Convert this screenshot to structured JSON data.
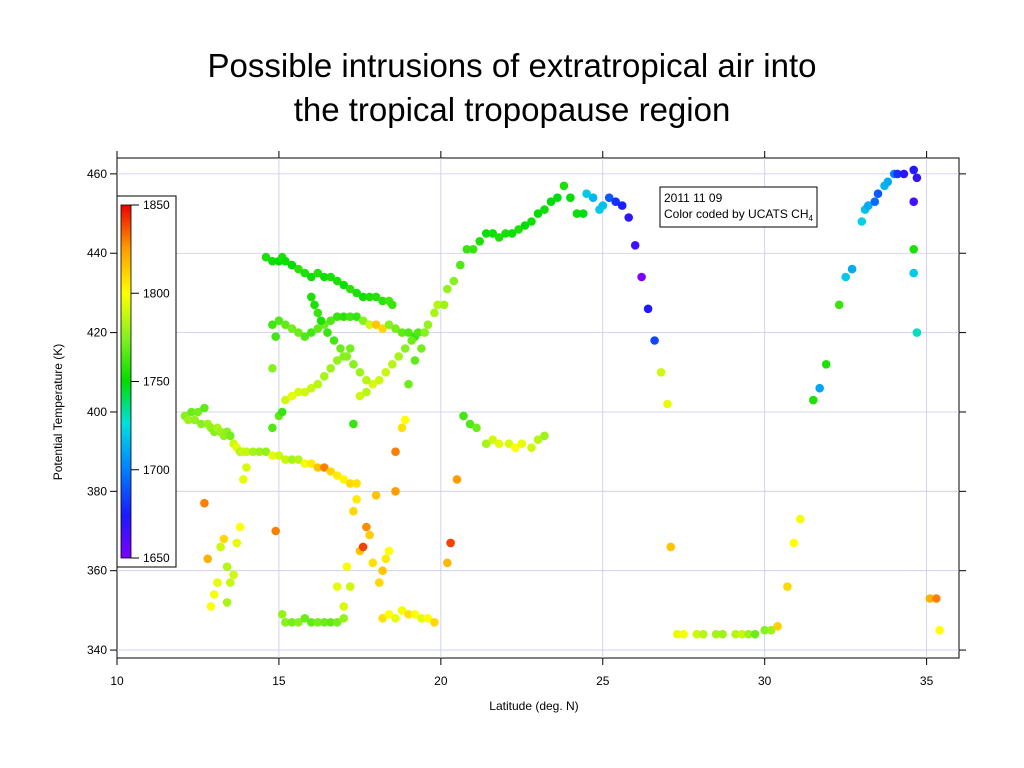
{
  "slide": {
    "title_line1": "Possible intrusions of extratropical air into",
    "title_line2": "the tropical tropopause region"
  },
  "chart_data": {
    "type": "scatter",
    "xlabel": "Latitude (deg. N)",
    "ylabel": "Potential Temperature (K)",
    "xlim": [
      10,
      36
    ],
    "ylim": [
      338,
      464
    ],
    "xticks": [
      10,
      15,
      20,
      25,
      30,
      35
    ],
    "yticks": [
      340,
      360,
      380,
      400,
      420,
      440,
      460
    ],
    "grid": true,
    "annotation": {
      "line1": "2011 11 09",
      "line2_prefix": "Color coded by UCATS CH",
      "line2_sub": "4"
    },
    "colorbar": {
      "min": 1650,
      "max": 1850,
      "ticks": [
        1650,
        1700,
        1750,
        1800,
        1850
      ],
      "placement": "top-left"
    },
    "points": [
      [
        12.1,
        399,
        1775
      ],
      [
        12.2,
        398,
        1780
      ],
      [
        12.3,
        400,
        1770
      ],
      [
        12.4,
        398,
        1778
      ],
      [
        12.5,
        400,
        1772
      ],
      [
        12.6,
        397,
        1775
      ],
      [
        12.7,
        401,
        1768
      ],
      [
        12.8,
        397,
        1780
      ],
      [
        12.9,
        396,
        1778
      ],
      [
        13.0,
        395,
        1775
      ],
      [
        13.1,
        396,
        1782
      ],
      [
        13.2,
        395,
        1780
      ],
      [
        13.3,
        394,
        1778
      ],
      [
        13.4,
        395,
        1776
      ],
      [
        13.5,
        394,
        1772
      ],
      [
        13.6,
        392,
        1790
      ],
      [
        13.7,
        391,
        1795
      ],
      [
        13.8,
        390,
        1785
      ],
      [
        13.9,
        390,
        1790
      ],
      [
        14.0,
        390,
        1788
      ],
      [
        14.2,
        390,
        1782
      ],
      [
        14.4,
        390,
        1780
      ],
      [
        14.6,
        390,
        1778
      ],
      [
        14.8,
        389,
        1795
      ],
      [
        15.0,
        389,
        1790
      ],
      [
        15.2,
        388,
        1788
      ],
      [
        15.4,
        388,
        1782
      ],
      [
        15.6,
        388,
        1785
      ],
      [
        15.8,
        387,
        1798
      ],
      [
        16.0,
        387,
        1805
      ],
      [
        16.2,
        386,
        1815
      ],
      [
        16.4,
        386,
        1830
      ],
      [
        16.6,
        385,
        1810
      ],
      [
        16.8,
        384,
        1805
      ],
      [
        17.0,
        383,
        1802
      ],
      [
        17.2,
        382,
        1810
      ],
      [
        17.4,
        382,
        1808
      ],
      [
        14.6,
        439,
        1755
      ],
      [
        14.8,
        438,
        1752
      ],
      [
        15.0,
        438,
        1750
      ],
      [
        15.1,
        439,
        1755
      ],
      [
        15.2,
        438,
        1752
      ],
      [
        15.4,
        437,
        1750
      ],
      [
        15.6,
        436,
        1758
      ],
      [
        15.8,
        435,
        1755
      ],
      [
        16.0,
        434,
        1752
      ],
      [
        16.2,
        435,
        1756
      ],
      [
        16.4,
        434,
        1753
      ],
      [
        16.6,
        434,
        1755
      ],
      [
        16.8,
        433,
        1755
      ],
      [
        17.0,
        432,
        1752
      ],
      [
        17.2,
        431,
        1758
      ],
      [
        17.4,
        430,
        1755
      ],
      [
        17.6,
        429,
        1753
      ],
      [
        17.8,
        429,
        1755
      ],
      [
        18.0,
        429,
        1756
      ],
      [
        18.2,
        428,
        1758
      ],
      [
        18.4,
        428,
        1762
      ],
      [
        18.5,
        427,
        1760
      ],
      [
        14.8,
        422,
        1762
      ],
      [
        15.0,
        423,
        1765
      ],
      [
        15.2,
        422,
        1768
      ],
      [
        15.4,
        421,
        1772
      ],
      [
        15.6,
        420,
        1770
      ],
      [
        15.8,
        419,
        1765
      ],
      [
        16.0,
        420,
        1762
      ],
      [
        16.2,
        421,
        1768
      ],
      [
        16.4,
        422,
        1770
      ],
      [
        16.6,
        423,
        1765
      ],
      [
        16.8,
        424,
        1760
      ],
      [
        17.0,
        424,
        1758
      ],
      [
        17.2,
        424,
        1762
      ],
      [
        17.4,
        424,
        1760
      ],
      [
        17.6,
        423,
        1775
      ],
      [
        17.8,
        422,
        1790
      ],
      [
        18.0,
        422,
        1815
      ],
      [
        18.2,
        421,
        1810
      ],
      [
        18.4,
        422,
        1775
      ],
      [
        18.6,
        421,
        1772
      ],
      [
        18.8,
        420,
        1768
      ],
      [
        19.0,
        420,
        1765
      ],
      [
        19.2,
        419,
        1760
      ],
      [
        15.2,
        403,
        1790
      ],
      [
        15.4,
        404,
        1795
      ],
      [
        15.6,
        405,
        1792
      ],
      [
        15.8,
        405,
        1790
      ],
      [
        16.0,
        406,
        1788
      ],
      [
        16.2,
        407,
        1785
      ],
      [
        16.4,
        409,
        1782
      ],
      [
        16.6,
        411,
        1780
      ],
      [
        16.8,
        413,
        1778
      ],
      [
        17.0,
        414,
        1775
      ],
      [
        17.2,
        416,
        1772
      ],
      [
        17.5,
        404,
        1790
      ],
      [
        17.7,
        405,
        1785
      ],
      [
        17.9,
        407,
        1792
      ],
      [
        18.1,
        408,
        1790
      ],
      [
        18.3,
        410,
        1788
      ],
      [
        18.5,
        412,
        1785
      ],
      [
        18.7,
        414,
        1782
      ],
      [
        18.9,
        416,
        1775
      ],
      [
        19.1,
        418,
        1770
      ],
      [
        19.3,
        420,
        1765
      ],
      [
        16.0,
        429,
        1755
      ],
      [
        16.1,
        427,
        1755
      ],
      [
        16.2,
        425,
        1760
      ],
      [
        16.3,
        423,
        1755
      ],
      [
        16.5,
        420,
        1760
      ],
      [
        16.7,
        418,
        1762
      ],
      [
        16.9,
        416,
        1770
      ],
      [
        17.1,
        414,
        1775
      ],
      [
        17.3,
        412,
        1775
      ],
      [
        17.5,
        410,
        1780
      ],
      [
        17.7,
        408,
        1785
      ],
      [
        14.8,
        411,
        1775
      ],
      [
        14.9,
        419,
        1762
      ],
      [
        14.8,
        396,
        1765
      ],
      [
        15.0,
        399,
        1768
      ],
      [
        15.1,
        400,
        1760
      ],
      [
        17.3,
        397,
        1760
      ],
      [
        18.6,
        390,
        1830
      ],
      [
        18.8,
        396,
        1808
      ],
      [
        18.9,
        398,
        1800
      ],
      [
        19.0,
        407,
        1770
      ],
      [
        19.2,
        413,
        1768
      ],
      [
        19.4,
        416,
        1772
      ],
      [
        19.5,
        420,
        1775
      ],
      [
        19.6,
        422,
        1778
      ],
      [
        19.8,
        425,
        1782
      ],
      [
        19.9,
        427,
        1785
      ],
      [
        20.1,
        427,
        1780
      ],
      [
        20.2,
        431,
        1778
      ],
      [
        20.4,
        433,
        1775
      ],
      [
        20.6,
        437,
        1765
      ],
      [
        20.8,
        441,
        1760
      ],
      [
        21.0,
        441,
        1760
      ],
      [
        21.2,
        443,
        1755
      ],
      [
        21.4,
        445,
        1752
      ],
      [
        21.6,
        445,
        1752
      ],
      [
        21.8,
        444,
        1755
      ],
      [
        22.0,
        445,
        1754
      ],
      [
        22.2,
        445,
        1752
      ],
      [
        22.4,
        446,
        1755
      ],
      [
        22.6,
        447,
        1750
      ],
      [
        22.8,
        448,
        1752
      ],
      [
        23.0,
        450,
        1750
      ],
      [
        23.2,
        451,
        1752
      ],
      [
        23.4,
        453,
        1750
      ],
      [
        23.6,
        454,
        1748
      ],
      [
        23.8,
        457,
        1755
      ],
      [
        24.0,
        454,
        1750
      ],
      [
        24.2,
        450,
        1752
      ],
      [
        24.4,
        450,
        1748
      ],
      [
        24.5,
        455,
        1720
      ],
      [
        24.7,
        454,
        1715
      ],
      [
        24.9,
        451,
        1720
      ],
      [
        25.0,
        452,
        1718
      ],
      [
        25.2,
        454,
        1690
      ],
      [
        25.4,
        453,
        1680
      ],
      [
        25.6,
        452,
        1675
      ],
      [
        25.8,
        449,
        1670
      ],
      [
        26.0,
        442,
        1665
      ],
      [
        26.2,
        434,
        1650
      ],
      [
        26.4,
        426,
        1672
      ],
      [
        26.6,
        418,
        1685
      ],
      [
        26.8,
        410,
        1790
      ],
      [
        27.0,
        402,
        1795
      ],
      [
        20.7,
        399,
        1762
      ],
      [
        20.9,
        397,
        1765
      ],
      [
        21.1,
        396,
        1770
      ],
      [
        21.4,
        392,
        1782
      ],
      [
        21.6,
        393,
        1790
      ],
      [
        21.8,
        392,
        1795
      ],
      [
        22.1,
        392,
        1792
      ],
      [
        22.3,
        391,
        1800
      ],
      [
        22.5,
        392,
        1795
      ],
      [
        22.8,
        391,
        1790
      ],
      [
        23.0,
        393,
        1785
      ],
      [
        23.2,
        394,
        1780
      ],
      [
        12.7,
        377,
        1830
      ],
      [
        12.8,
        363,
        1820
      ],
      [
        12.9,
        351,
        1800
      ],
      [
        13.0,
        354,
        1798
      ],
      [
        13.1,
        357,
        1795
      ],
      [
        13.2,
        366,
        1790
      ],
      [
        13.3,
        368,
        1810
      ],
      [
        13.4,
        361,
        1785
      ],
      [
        13.4,
        352,
        1782
      ],
      [
        13.5,
        357,
        1788
      ],
      [
        13.6,
        359,
        1790
      ],
      [
        13.7,
        367,
        1795
      ],
      [
        13.8,
        371,
        1800
      ],
      [
        13.9,
        383,
        1795
      ],
      [
        14.0,
        386,
        1792
      ],
      [
        14.9,
        370,
        1830
      ],
      [
        15.1,
        349,
        1778
      ],
      [
        15.2,
        347,
        1775
      ],
      [
        15.4,
        347,
        1772
      ],
      [
        15.6,
        347,
        1775
      ],
      [
        15.8,
        348,
        1770
      ],
      [
        16.0,
        347,
        1768
      ],
      [
        16.2,
        347,
        1772
      ],
      [
        16.4,
        347,
        1770
      ],
      [
        16.6,
        347,
        1768
      ],
      [
        16.8,
        347,
        1772
      ],
      [
        17.0,
        348,
        1778
      ],
      [
        16.8,
        356,
        1795
      ],
      [
        17.0,
        351,
        1792
      ],
      [
        17.1,
        361,
        1798
      ],
      [
        17.2,
        356,
        1790
      ],
      [
        17.3,
        375,
        1810
      ],
      [
        17.4,
        378,
        1805
      ],
      [
        17.5,
        365,
        1815
      ],
      [
        17.6,
        366,
        1840
      ],
      [
        17.7,
        371,
        1828
      ],
      [
        17.8,
        369,
        1812
      ],
      [
        17.9,
        362,
        1808
      ],
      [
        18.0,
        379,
        1815
      ],
      [
        18.1,
        357,
        1810
      ],
      [
        18.2,
        360,
        1815
      ],
      [
        18.3,
        363,
        1805
      ],
      [
        18.4,
        365,
        1800
      ],
      [
        18.6,
        380,
        1825
      ],
      [
        18.2,
        348,
        1808
      ],
      [
        18.4,
        349,
        1800
      ],
      [
        18.6,
        348,
        1795
      ],
      [
        18.8,
        350,
        1798
      ],
      [
        19.0,
        349,
        1808
      ],
      [
        19.2,
        349,
        1800
      ],
      [
        19.4,
        348,
        1795
      ],
      [
        19.6,
        348,
        1800
      ],
      [
        19.8,
        347,
        1810
      ],
      [
        20.2,
        362,
        1818
      ],
      [
        20.3,
        367,
        1840
      ],
      [
        20.5,
        383,
        1825
      ],
      [
        27.1,
        366,
        1815
      ],
      [
        27.3,
        344,
        1795
      ],
      [
        27.5,
        344,
        1798
      ],
      [
        27.9,
        344,
        1790
      ],
      [
        28.1,
        344,
        1785
      ],
      [
        28.5,
        344,
        1782
      ],
      [
        28.7,
        344,
        1780
      ],
      [
        29.1,
        344,
        1785
      ],
      [
        29.3,
        344,
        1788
      ],
      [
        29.5,
        344,
        1780
      ],
      [
        29.7,
        344,
        1770
      ],
      [
        30.0,
        345,
        1775
      ],
      [
        30.2,
        345,
        1780
      ],
      [
        30.4,
        346,
        1812
      ],
      [
        30.7,
        356,
        1810
      ],
      [
        30.9,
        367,
        1800
      ],
      [
        31.1,
        373,
        1798
      ],
      [
        31.5,
        403,
        1755
      ],
      [
        31.7,
        406,
        1710
      ],
      [
        31.9,
        412,
        1755
      ],
      [
        32.3,
        427,
        1760
      ],
      [
        32.5,
        434,
        1720
      ],
      [
        32.7,
        436,
        1712
      ],
      [
        33.0,
        448,
        1722
      ],
      [
        33.1,
        451,
        1718
      ],
      [
        33.2,
        452,
        1712
      ],
      [
        33.4,
        453,
        1695
      ],
      [
        33.5,
        455,
        1690
      ],
      [
        33.7,
        457,
        1715
      ],
      [
        33.8,
        458,
        1712
      ],
      [
        34.0,
        460,
        1700
      ],
      [
        34.1,
        460,
        1680
      ],
      [
        34.3,
        460,
        1670
      ],
      [
        34.6,
        461,
        1672
      ],
      [
        34.6,
        453,
        1665
      ],
      [
        34.7,
        459,
        1668
      ],
      [
        34.6,
        441,
        1755
      ],
      [
        34.6,
        435,
        1720
      ],
      [
        34.7,
        420,
        1730
      ],
      [
        35.1,
        353,
        1820
      ],
      [
        35.3,
        353,
        1830
      ],
      [
        35.4,
        345,
        1800
      ]
    ]
  }
}
